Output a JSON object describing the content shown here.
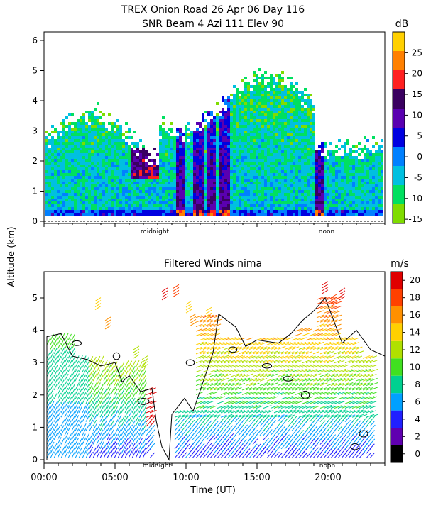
{
  "title_line1": "TREX Onion Road  26 Apr 06 Day 116",
  "title_line2": "SNR Beam 4 Azi 111 Elev 90",
  "panel2_title": "Filtered Winds nima",
  "ylabel": "Altitude (km)",
  "xlabel": "Time (UT)",
  "marker_midnight": "midnight",
  "marker_noon": "noon",
  "colors": {
    "snr": [
      "#7fdc00",
      "#00e060",
      "#00c0e0",
      "#0080ff",
      "#0000e0",
      "#5a00b0",
      "#3a0060",
      "#ff2020",
      "#ff8000",
      "#ffd000"
    ],
    "wind": [
      "#000000",
      "#6000b0",
      "#2020ff",
      "#00a0ff",
      "#00d090",
      "#40e020",
      "#b0e000",
      "#ffd000",
      "#ff9000",
      "#ff4000",
      "#e00000"
    ]
  },
  "chart_data": [
    {
      "type": "heatmap",
      "title": "SNR Beam 4 Azi 111 Elev 90",
      "ylabel": "Altitude (km)",
      "ylim": [
        0,
        6.4
      ],
      "yticks": [
        "0",
        "1",
        "2",
        "3",
        "4",
        "5",
        "6"
      ],
      "colorbar_unit": "dB",
      "colorbar_ticks": [
        "-15",
        "-10",
        "-5",
        "0",
        "5",
        "10",
        "15",
        "20",
        "25"
      ],
      "colorbar_range": [
        -16,
        30
      ]
    },
    {
      "type": "scatter",
      "title": "Filtered Winds nima",
      "xlabel": "Time (UT)",
      "ylabel": "Altitude (km)",
      "xlim": [
        0,
        24
      ],
      "ylim": [
        0,
        6
      ],
      "xticks": [
        "00:00",
        "05:00",
        "10:00",
        "15:00",
        "20:00"
      ],
      "yticks": [
        "0",
        "1",
        "2",
        "3",
        "4",
        "5"
      ],
      "colorbar_unit": "m/s",
      "colorbar_ticks": [
        "0",
        "2",
        "4",
        "6",
        "8",
        "10",
        "12",
        "14",
        "16",
        "18",
        "20"
      ],
      "colorbar_range": [
        0,
        22
      ]
    }
  ]
}
